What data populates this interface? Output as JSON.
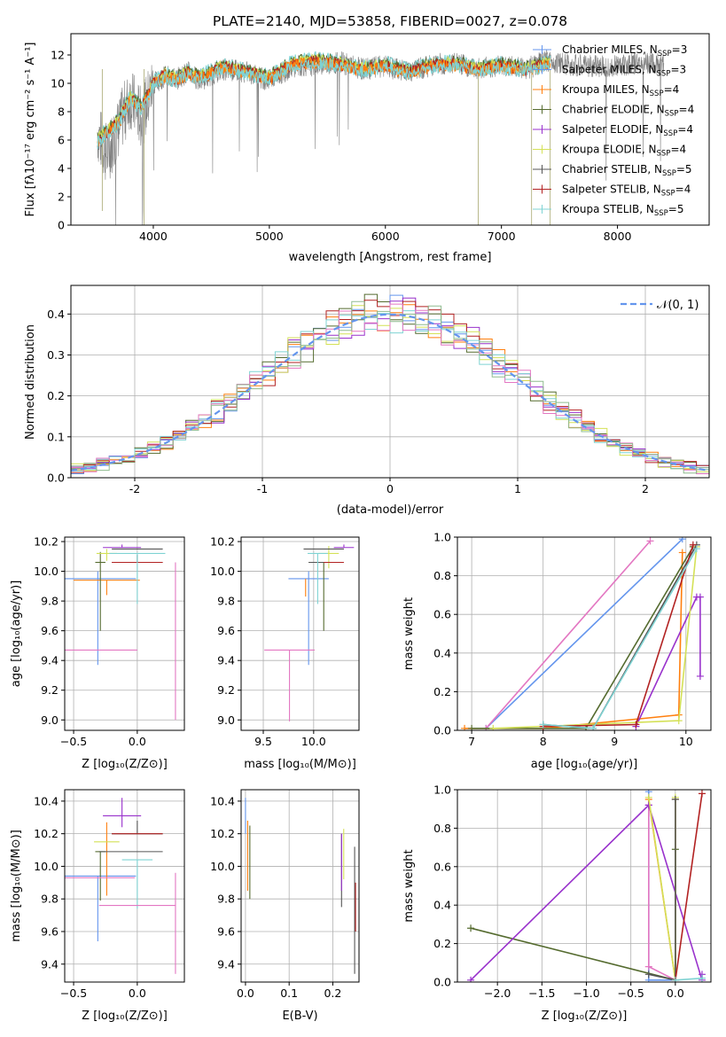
{
  "colors": {
    "series": [
      "#6495ed",
      "#ff7f0e",
      "#e07b2c",
      "#556b2f",
      "#9932cc",
      "#d4e157",
      "#555555",
      "#b22222",
      "#7fd3d3"
    ],
    "extra": [
      "#e377c2",
      "#8fbc8f",
      "#aaaaaa"
    ],
    "frame": "#000000",
    "grid": "#b0b0b0"
  },
  "chart_data": [
    {
      "type": "line",
      "title": "PLATE=2140, MJD=53858, FIBERID=0027, z=0.078",
      "xlabel": "wavelength [Angstrom, rest frame]",
      "ylabel": "Flux [f_λ 10^-17 erg cm^-2 s^-1 A^-1]",
      "xlim": [
        3290,
        8790
      ],
      "ylim": [
        0,
        13.5
      ],
      "xticks": [
        4000,
        5000,
        6000,
        7000,
        8000
      ],
      "yticks": [
        0,
        2,
        4,
        6,
        8,
        10,
        12
      ],
      "legend_position": "top-right",
      "legend": [
        "Chabrier MILES, N_SSP=3",
        "Salpeter MILES, N_SSP=3",
        "Kroupa MILES, N_SSP=4",
        "Chabrier ELODIE, N_SSP=4",
        "Salpeter ELODIE, N_SSP=4",
        "Kroupa ELODIE, N_SSP=4",
        "Chabrier STELIB, N_SSP=5",
        "Salpeter STELIB, N_SSP=4",
        "Kroupa STELIB, N_SSP=5"
      ],
      "series": [
        {
          "name": "data",
          "x": [
            3520,
            3600,
            3700,
            3800,
            3900,
            4000,
            4100,
            4200,
            4300,
            4400,
            4600,
            4800,
            5000,
            5200,
            5400,
            5600,
            5800,
            6000,
            6200,
            6400,
            6600,
            6800,
            7000,
            7200,
            7400,
            7600,
            7800,
            8000,
            8200,
            8400
          ],
          "y": [
            6.5,
            5.0,
            6.8,
            9.0,
            7.5,
            10.0,
            10.5,
            10.3,
            10.8,
            10.2,
            11.0,
            10.8,
            10.2,
            11.2,
            11.3,
            11.5,
            11.0,
            11.2,
            10.8,
            11.3,
            11.4,
            11.0,
            11.3,
            11.0,
            11.6,
            11.3,
            11.2,
            11.3,
            11.4,
            11.3
          ]
        },
        {
          "name": "model",
          "x": [
            3520,
            3600,
            3700,
            3800,
            3900,
            4000,
            4100,
            4200,
            4300,
            4400,
            4600,
            4800,
            5000,
            5200,
            5400,
            5600,
            5800,
            6000,
            6200,
            6400,
            6600,
            6800,
            7000,
            7200,
            7400
          ],
          "y": [
            6.2,
            6.8,
            7.5,
            9.2,
            8.5,
            10.2,
            10.8,
            10.5,
            11.0,
            10.6,
            11.4,
            11.0,
            10.6,
            11.6,
            11.8,
            11.6,
            11.2,
            11.5,
            11.0,
            11.5,
            11.6,
            11.2,
            11.5,
            11.2,
            11.6
          ]
        }
      ]
    },
    {
      "type": "histogram",
      "xlabel": "(data-model)/error",
      "ylabel": "Normed distribution",
      "xlim": [
        -2.5,
        2.5
      ],
      "ylim": [
        0,
        0.47
      ],
      "xticks": [
        -2,
        -1,
        0,
        1,
        2
      ],
      "yticks": [
        0.0,
        0.1,
        0.2,
        0.3,
        0.4
      ],
      "legend_position": "top-right",
      "legend": [
        "N(0, 1)"
      ],
      "bin_width": 0.1,
      "bin_start": -2.5
    },
    {
      "type": "scatter",
      "xlabel": "Z [log10(Z/Z_sun)]",
      "ylabel": "age [log10(age/yr)]",
      "xlim": [
        -0.57,
        0.37
      ],
      "ylim": [
        8.93,
        10.23
      ],
      "xticks": [
        -0.5,
        0.0
      ],
      "yticks": [
        9.0,
        9.2,
        9.4,
        9.6,
        9.8,
        10.0,
        10.2
      ],
      "points": [
        {
          "x": -0.31,
          "y": 9.95,
          "xerr": 0.3,
          "yerr": [
            0.58,
            0.05
          ]
        },
        {
          "x": -0.24,
          "y": 9.94,
          "xerr": 0.26,
          "yerr": [
            0.1,
            0.0
          ]
        },
        {
          "x": -0.29,
          "y": 10.06,
          "xerr": 0.04,
          "yerr": [
            0.46,
            0.07
          ]
        },
        {
          "x": 0.0,
          "y": 10.06,
          "xerr": 0.2,
          "yerr": [
            0.0,
            0.05
          ]
        },
        {
          "x": -0.12,
          "y": 10.16,
          "xerr": 0.15,
          "yerr": [
            0.0,
            0.02
          ]
        },
        {
          "x": -0.24,
          "y": 10.12,
          "xerr": 0.08,
          "yerr": [
            0.05,
            0.03
          ]
        },
        {
          "x": 0.0,
          "y": 10.15,
          "xerr": 0.2,
          "yerr": [
            0.0,
            0.0
          ]
        },
        {
          "x": 0.0,
          "y": 10.06,
          "xerr": 0.2,
          "yerr": [
            0.0,
            0.0
          ]
        },
        {
          "x": 0.0,
          "y": 10.12,
          "xerr": 0.22,
          "yerr": [
            0.34,
            0.0
          ]
        },
        {
          "x": -0.3,
          "y": 9.47,
          "xerr": 0.3,
          "yerr": [
            0.0,
            0.0
          ]
        },
        {
          "x": 0.3,
          "y": 10.06,
          "xerr": 0.0,
          "yerr": [
            1.06,
            0.0
          ]
        }
      ]
    },
    {
      "type": "scatter",
      "xlabel": "mass [log10(M/M_sun)]",
      "ylabel": "",
      "xlim": [
        9.28,
        10.45
      ],
      "ylim": [
        8.93,
        10.23
      ],
      "xticks": [
        9.5,
        10.0
      ],
      "yticks": [
        9.0,
        9.2,
        9.4,
        9.6,
        9.8,
        10.0,
        10.2
      ],
      "points": [
        {
          "x": 9.95,
          "y": 9.95,
          "xerr": 0.2,
          "yerr": [
            0.58,
            0.05
          ]
        },
        {
          "x": 9.92,
          "y": 9.95,
          "xerr": 0.0,
          "yerr": [
            0.12,
            0.0
          ]
        },
        {
          "x": 10.1,
          "y": 10.06,
          "xerr": 0.15,
          "yerr": [
            0.46,
            0.0
          ]
        },
        {
          "x": 10.1,
          "y": 10.06,
          "xerr": 0.15,
          "yerr": [
            0.0,
            0.0
          ]
        },
        {
          "x": 10.3,
          "y": 10.16,
          "xerr": 0.1,
          "yerr": [
            0.0,
            0.02
          ]
        },
        {
          "x": 10.15,
          "y": 10.12,
          "xerr": 0.1,
          "yerr": [
            0.1,
            0.05
          ]
        },
        {
          "x": 10.1,
          "y": 10.15,
          "xerr": 0.2,
          "yerr": [
            0.0,
            0.0
          ]
        },
        {
          "x": 10.2,
          "y": 10.06,
          "xerr": 0.1,
          "yerr": [
            0.0,
            0.0
          ]
        },
        {
          "x": 10.04,
          "y": 10.12,
          "xerr": 0.1,
          "yerr": [
            0.34,
            0.0
          ]
        },
        {
          "x": 9.76,
          "y": 9.47,
          "xerr": 0.25,
          "yerr": [
            0.0,
            0.0
          ]
        },
        {
          "x": 9.76,
          "y": 9.47,
          "xerr": 0.0,
          "yerr": [
            0.48,
            0.0
          ]
        }
      ]
    },
    {
      "type": "line",
      "xlabel": "age [log10(age/yr)]",
      "ylabel": "mass weight",
      "xlim": [
        6.8,
        10.35
      ],
      "ylim": [
        0,
        1
      ],
      "xticks": [
        7,
        8,
        9,
        10
      ],
      "yticks": [
        0.0,
        0.2,
        0.4,
        0.6,
        0.8,
        1.0
      ],
      "series": [
        {
          "x": [
            7.2,
            9.95
          ],
          "y": [
            0.01,
            0.99
          ]
        },
        {
          "x": [
            7.2,
            9.5
          ],
          "y": [
            0.01,
            0.98
          ]
        },
        {
          "x": [
            6.9,
            8.0,
            9.9,
            9.95
          ],
          "y": [
            0.01,
            0.01,
            0.08,
            0.92
          ]
        },
        {
          "x": [
            7.0,
            8.6,
            10.1
          ],
          "y": [
            0.01,
            0.01,
            0.95
          ]
        },
        {
          "x": [
            9.3,
            10.15,
            10.2,
            10.2
          ],
          "y": [
            0.02,
            0.69,
            0.69,
            0.28
          ]
        },
        {
          "x": [
            7.3,
            9.9,
            10.15
          ],
          "y": [
            0.01,
            0.05,
            0.95
          ]
        },
        {
          "x": [
            8.0,
            8.7,
            10.15
          ],
          "y": [
            0.03,
            0.01,
            0.96
          ]
        },
        {
          "x": [
            8.0,
            9.3,
            10.1
          ],
          "y": [
            0.02,
            0.03,
            0.96
          ]
        },
        {
          "x": [
            8.0,
            8.7,
            10.15
          ],
          "y": [
            0.03,
            0.01,
            0.94
          ]
        }
      ]
    },
    {
      "type": "scatter",
      "xlabel": "Z [log10(Z/Z_sun)]",
      "ylabel": "mass [log10(M/M_sun)]",
      "xlim": [
        -0.57,
        0.37
      ],
      "ylim": [
        9.29,
        10.47
      ],
      "xticks": [
        -0.5,
        0.0
      ],
      "yticks": [
        9.4,
        9.6,
        9.8,
        10.0,
        10.2,
        10.4
      ],
      "points": [
        {
          "x": -0.31,
          "y": 9.94,
          "xerr": 0.3,
          "yerr": [
            0.4,
            0.0
          ]
        },
        {
          "x": -0.24,
          "y": 10.12,
          "xerr": 0.0,
          "yerr": [
            0.3,
            0.15
          ]
        },
        {
          "x": -0.29,
          "y": 10.09,
          "xerr": 0.04,
          "yerr": [
            0.3,
            0.0
          ]
        },
        {
          "x": -0.05,
          "y": 10.09,
          "xerr": 0.25,
          "yerr": [
            0.0,
            0.0
          ]
        },
        {
          "x": -0.12,
          "y": 10.31,
          "xerr": 0.15,
          "yerr": [
            0.07,
            0.11
          ]
        },
        {
          "x": -0.24,
          "y": 10.15,
          "xerr": 0.1,
          "yerr": [
            0.0,
            0.0
          ]
        },
        {
          "x": 0.0,
          "y": 10.2,
          "xerr": 0.2,
          "yerr": [
            0.0,
            0.08
          ]
        },
        {
          "x": 0.0,
          "y": 10.2,
          "xerr": 0.2,
          "yerr": [
            0.0,
            0.0
          ]
        },
        {
          "x": 0.0,
          "y": 10.04,
          "xerr": 0.12,
          "yerr": [
            0.3,
            0.0
          ]
        },
        {
          "x": -0.3,
          "y": 9.93,
          "xerr": 0.28,
          "yerr": [
            0.0,
            0.0
          ]
        },
        {
          "x": 0.0,
          "y": 9.76,
          "xerr": 0.3,
          "yerr": [
            0.0,
            0.0
          ]
        },
        {
          "x": 0.3,
          "y": 9.76,
          "xerr": 0.0,
          "yerr": [
            0.42,
            0.2
          ]
        }
      ]
    },
    {
      "type": "scatter",
      "xlabel": "E(B-V)",
      "ylabel": "",
      "xlim": [
        -0.01,
        0.26
      ],
      "ylim": [
        9.29,
        10.47
      ],
      "xticks": [
        0.0,
        0.1,
        0.2
      ],
      "yticks": [
        9.4,
        9.6,
        9.8,
        10.0,
        10.2,
        10.4
      ],
      "points": [
        {
          "x": 0.0,
          "y": 10.3,
          "xerr": 0.0,
          "yerr": [
            0.1,
            0.12
          ]
        },
        {
          "x": 0.005,
          "y": 10.15,
          "xerr": 0.0,
          "yerr": [
            0.3,
            0.13
          ]
        },
        {
          "x": 0.01,
          "y": 10.05,
          "xerr": 0.0,
          "yerr": [
            0.25,
            0.2
          ]
        },
        {
          "x": 0.22,
          "y": 10.0,
          "xerr": 0.0,
          "yerr": [
            0.25,
            0.2
          ]
        },
        {
          "x": 0.22,
          "y": 10.1,
          "xerr": 0.0,
          "yerr": [
            0.25,
            0.1
          ]
        },
        {
          "x": 0.225,
          "y": 10.05,
          "xerr": 0.0,
          "yerr": [
            0.13,
            0.18
          ]
        },
        {
          "x": 0.25,
          "y": 9.9,
          "xerr": 0.0,
          "yerr": [
            0.56,
            0.22
          ]
        },
        {
          "x": 0.252,
          "y": 9.9,
          "xerr": 0.0,
          "yerr": [
            0.3,
            0.0
          ]
        }
      ]
    },
    {
      "type": "line",
      "xlabel": "Z [log10(Z/Z_sun)]",
      "ylabel": "mass weight",
      "xlim": [
        -2.45,
        0.4
      ],
      "ylim": [
        0,
        1
      ],
      "xticks": [
        -2.0,
        -1.5,
        -1.0,
        -0.5,
        0.0
      ],
      "yticks": [
        0.0,
        0.2,
        0.4,
        0.6,
        0.8,
        1.0
      ],
      "series": [
        {
          "x": [
            -0.3,
            -0.3,
            0.0,
            0.0
          ],
          "y": [
            0.99,
            0.01,
            0.01,
            0.95
          ]
        },
        {
          "x": [
            -0.3,
            -0.3,
            0.0
          ],
          "y": [
            0.92,
            0.08,
            0.01
          ]
        },
        {
          "x": [
            -0.3,
            0.0,
            0.0
          ],
          "y": [
            0.95,
            0.01,
            0.95
          ]
        },
        {
          "x": [
            -2.3,
            0.0,
            0.0
          ],
          "y": [
            0.28,
            0.01,
            0.69
          ]
        },
        {
          "x": [
            -2.3,
            -0.3,
            0.3,
            0.3
          ],
          "y": [
            0.01,
            0.92,
            0.01,
            0.04
          ]
        },
        {
          "x": [
            -0.3,
            0.0,
            0.0
          ],
          "y": [
            0.96,
            0.01,
            0.96
          ]
        },
        {
          "x": [
            -0.3,
            0.0,
            0.0
          ],
          "y": [
            0.04,
            0.01,
            0.95
          ]
        },
        {
          "x": [
            0.0,
            0.3
          ],
          "y": [
            0.01,
            0.98
          ]
        },
        {
          "x": [
            0.0,
            0.3
          ],
          "y": [
            0.01,
            0.02
          ]
        }
      ]
    }
  ]
}
